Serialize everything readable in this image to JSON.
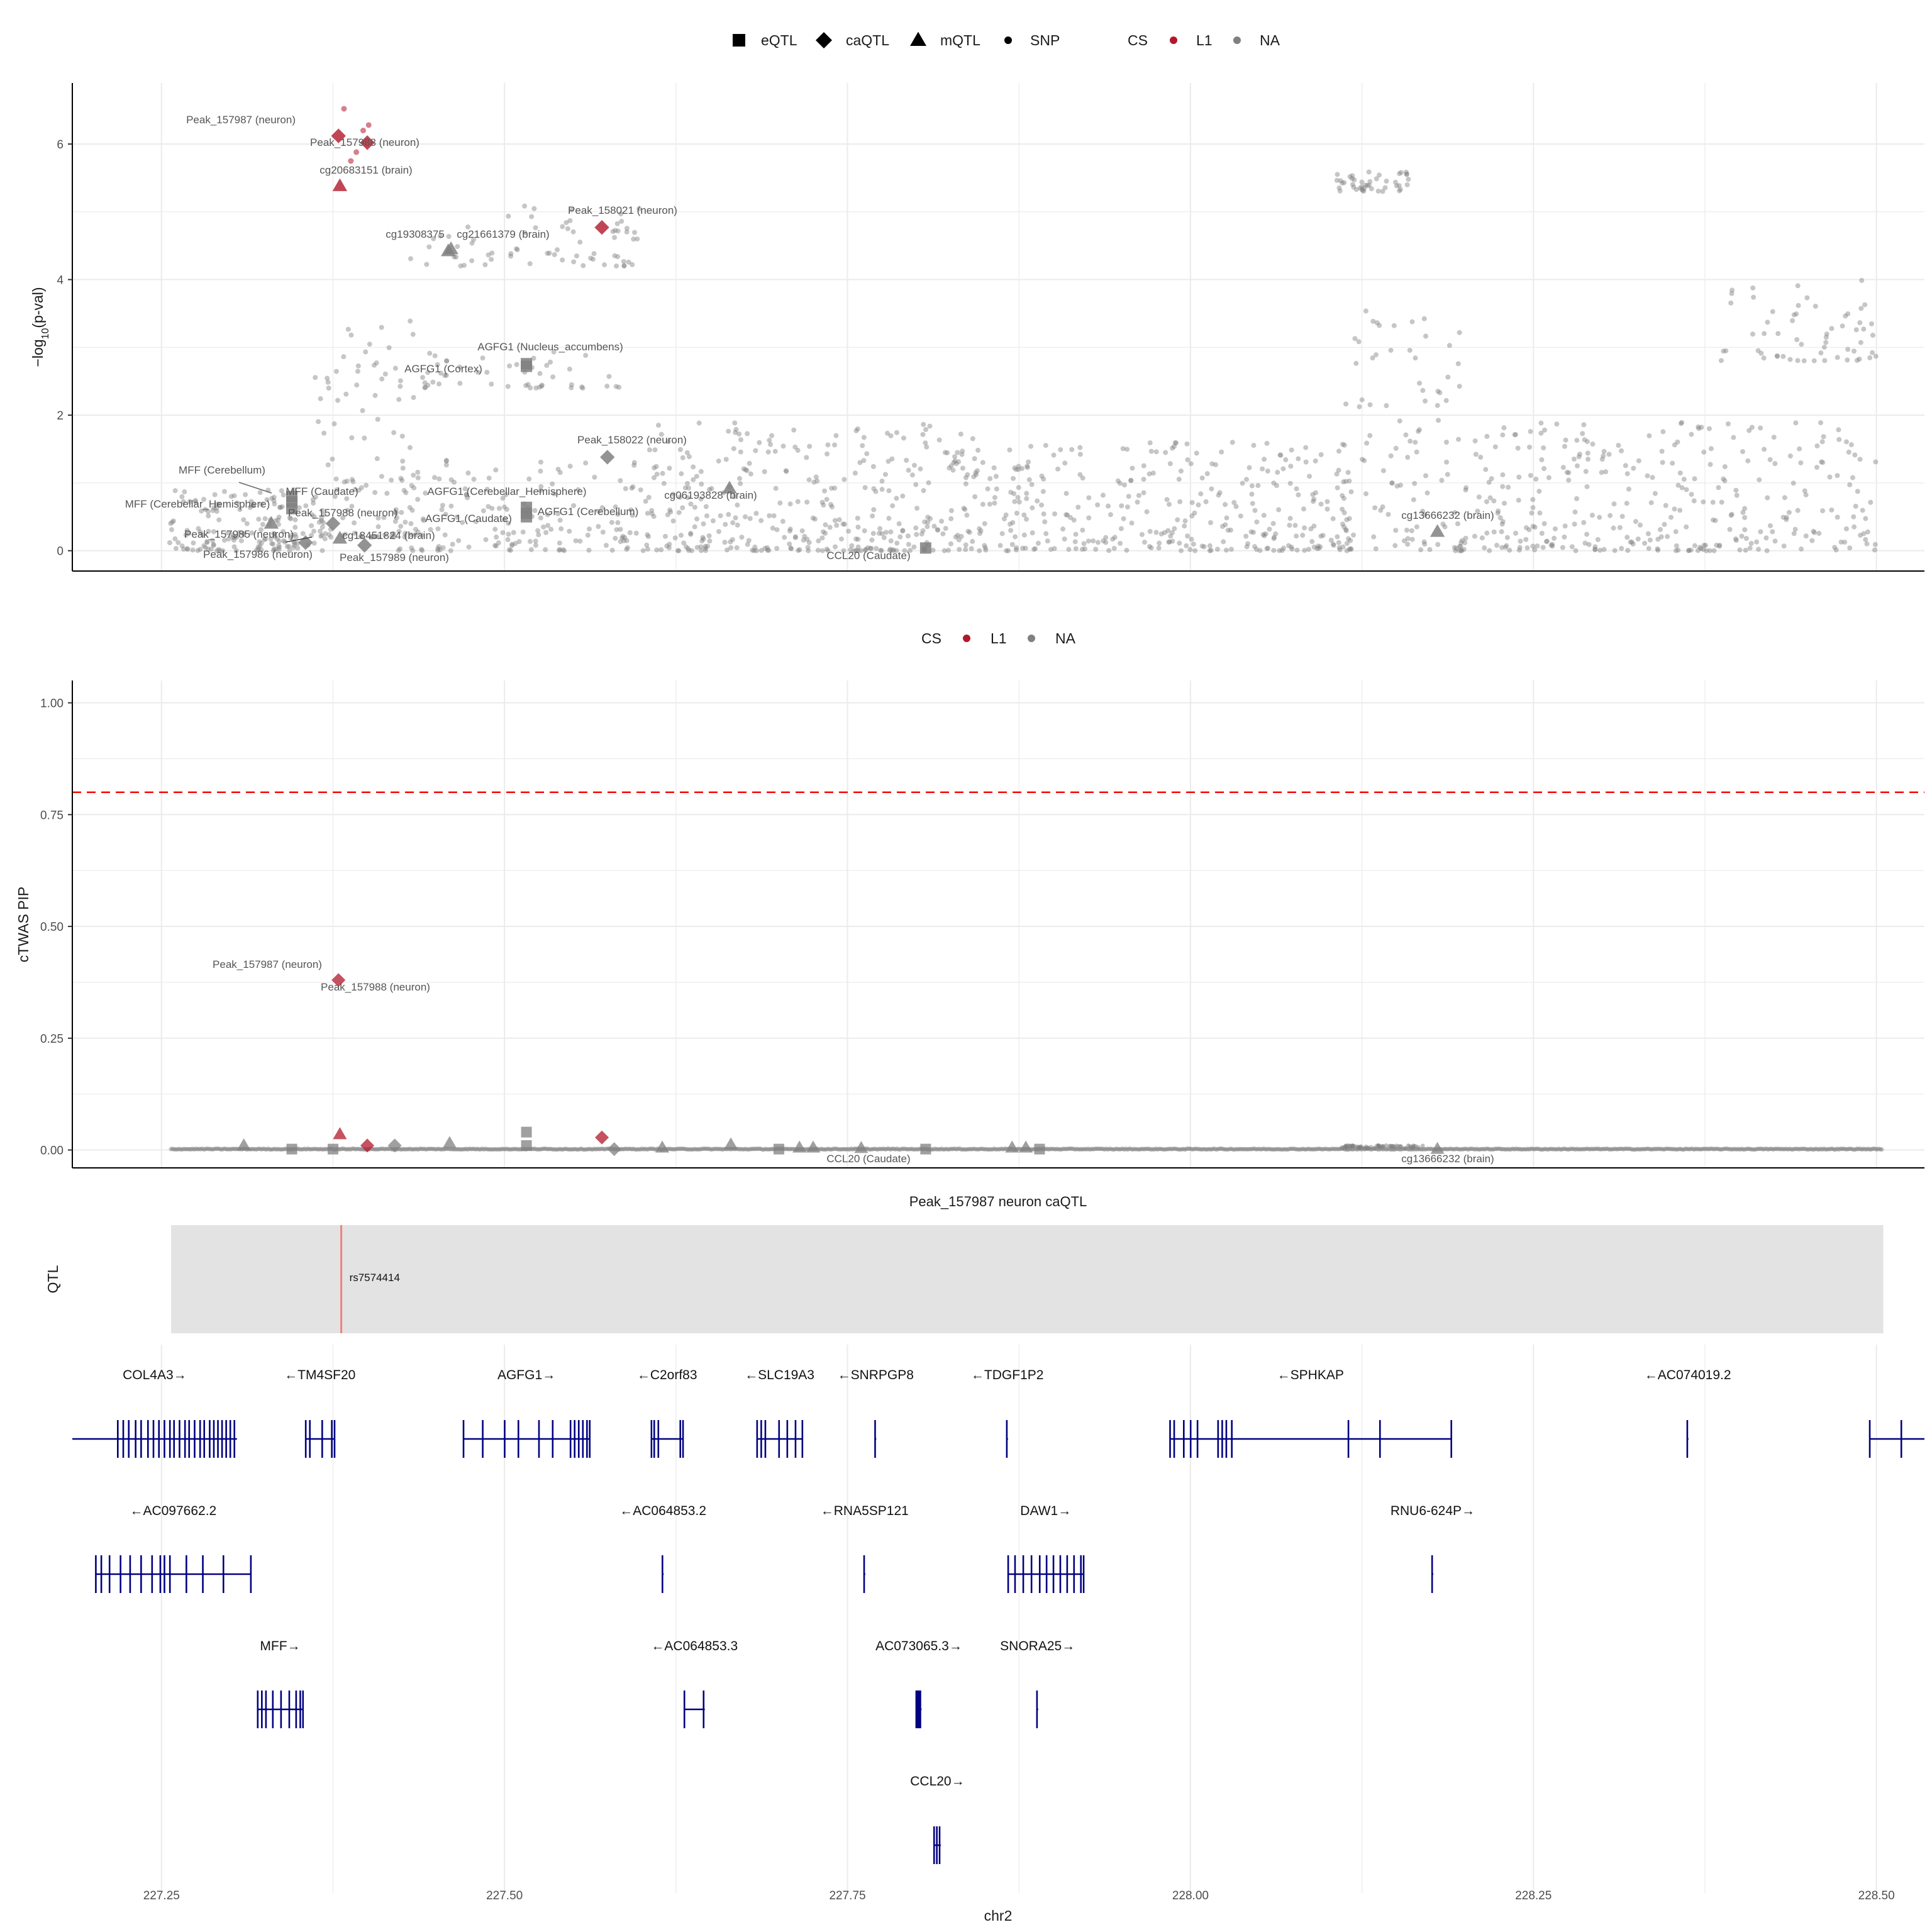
{
  "chart_data": [
    {
      "type": "scatter",
      "panel": "top",
      "ylabel": "−log10(p-val)",
      "ylim": [
        -0.3,
        6.9
      ],
      "xlim": [
        227.185,
        228.535
      ],
      "yticks": [
        0,
        2,
        4,
        6
      ],
      "grid": true,
      "legend": {
        "shape_items": [
          {
            "label": "eQTL",
            "shape": "square"
          },
          {
            "label": "caQTL",
            "shape": "diamond"
          },
          {
            "label": "mQTL",
            "shape": "triangle"
          },
          {
            "label": "SNP",
            "shape": "dot"
          }
        ],
        "color_title": "CS",
        "color_items": [
          {
            "label": "L1",
            "color": "#b2182b"
          },
          {
            "label": "NA",
            "color": "#808080"
          }
        ]
      },
      "clusters": [
        {
          "x0": 227.255,
          "x1": 227.37,
          "ylo": 0.0,
          "yhi": 0.9,
          "n": 170
        },
        {
          "x0": 227.36,
          "x1": 227.44,
          "ylo": 0.2,
          "yhi": 3.4,
          "n": 110
        },
        {
          "x0": 227.43,
          "x1": 227.6,
          "ylo": 4.2,
          "yhi": 5.1,
          "n": 70
        },
        {
          "x0": 227.44,
          "x1": 227.6,
          "ylo": 2.4,
          "yhi": 3.0,
          "n": 50
        },
        {
          "x0": 227.42,
          "x1": 227.6,
          "ylo": 0.0,
          "yhi": 1.4,
          "n": 160
        },
        {
          "x0": 227.6,
          "x1": 227.85,
          "ylo": 0.0,
          "yhi": 1.9,
          "n": 380
        },
        {
          "x0": 227.85,
          "x1": 228.12,
          "ylo": 0.0,
          "yhi": 1.6,
          "n": 330
        },
        {
          "x0": 228.105,
          "x1": 228.16,
          "ylo": 5.3,
          "yhi": 5.6,
          "n": 45
        },
        {
          "x0": 228.11,
          "x1": 228.2,
          "ylo": 0.0,
          "yhi": 3.6,
          "n": 110
        },
        {
          "x0": 228.2,
          "x1": 228.5,
          "ylo": 0.0,
          "yhi": 1.9,
          "n": 330
        },
        {
          "x0": 228.38,
          "x1": 228.5,
          "ylo": 2.8,
          "yhi": 4.0,
          "n": 60
        }
      ],
      "highlighted": [
        {
          "x": 227.383,
          "y": 6.52,
          "shape": "dot",
          "cs": "L1"
        },
        {
          "x": 227.401,
          "y": 6.28,
          "shape": "dot",
          "cs": "L1"
        },
        {
          "x": 227.397,
          "y": 6.2,
          "shape": "dot",
          "cs": "L1"
        },
        {
          "x": 227.388,
          "y": 5.75,
          "shape": "dot",
          "cs": "L1"
        },
        {
          "x": 227.392,
          "y": 5.88,
          "shape": "dot",
          "cs": "L1"
        }
      ],
      "features": [
        {
          "label": "Peak_157987 (neuron)",
          "x": 227.379,
          "y": 6.12,
          "shape": "diamond",
          "cs": "L1"
        },
        {
          "label": "Peak_157988 (neuron)",
          "x": 227.4,
          "y": 6.02,
          "shape": "diamond",
          "cs": "L1"
        },
        {
          "label": "cg20683151 (brain)",
          "x": 227.38,
          "y": 5.38,
          "shape": "triangle",
          "cs": "L1"
        },
        {
          "label": "Peak_158021 (neuron)",
          "x": 227.571,
          "y": 4.77,
          "shape": "diamond",
          "cs": "L1"
        },
        {
          "label": "cg19308375",
          "x": 227.461,
          "y": 4.45,
          "shape": "triangle",
          "cs": "NA"
        },
        {
          "label": "cg21661379 (brain)",
          "x": 227.459,
          "y": 4.42,
          "shape": "triangle",
          "cs": "NA"
        },
        {
          "label": "AGFG1 (Nucleus_accumbens)",
          "x": 227.516,
          "y": 2.76,
          "shape": "square",
          "cs": "NA"
        },
        {
          "label": "AGFG1 (Cortex)",
          "x": 227.516,
          "y": 2.72,
          "shape": "square",
          "cs": "NA"
        },
        {
          "label": "Peak_158022 (neuron)",
          "x": 227.575,
          "y": 1.38,
          "shape": "diamond",
          "cs": "NA"
        },
        {
          "label": "MFF (Cerebellum)",
          "x": 227.345,
          "y": 0.8,
          "shape": "square",
          "cs": "NA"
        },
        {
          "label": "MFF (Caudate)",
          "x": 227.345,
          "y": 0.72,
          "shape": "square",
          "cs": "NA"
        },
        {
          "label": "MFF (Cerebellar_Hemisphere)",
          "x": 227.345,
          "y": 0.62,
          "shape": "square",
          "cs": "NA"
        },
        {
          "label": "AGFG1 (Cerebellar_Hemisphere)",
          "x": 227.516,
          "y": 0.64,
          "shape": "square",
          "cs": "NA"
        },
        {
          "label": "AGFG1 (Caudate)",
          "x": 227.516,
          "y": 0.55,
          "shape": "square",
          "cs": "NA"
        },
        {
          "label": "AGFG1 (Cerebellum)",
          "x": 227.516,
          "y": 0.5,
          "shape": "square",
          "cs": "NA"
        },
        {
          "label": "cg06193828 (brain)",
          "x": 227.664,
          "y": 0.92,
          "shape": "triangle",
          "cs": "NA"
        },
        {
          "label": "Peak_157988 (neuron)",
          "x": 227.375,
          "y": 0.4,
          "shape": "diamond",
          "cs": "NA"
        },
        {
          "label": "Peak_157985 (neuron)",
          "x": 227.33,
          "y": 0.4,
          "shape": "triangle",
          "cs": "NA"
        },
        {
          "label": "cg18451824 (brain)",
          "x": 227.38,
          "y": 0.18,
          "shape": "triangle",
          "cs": "NA"
        },
        {
          "label": "Peak_157986 (neuron)",
          "x": 227.355,
          "y": 0.12,
          "shape": "diamond",
          "cs": "NA"
        },
        {
          "label": "Peak_157989 (neuron)",
          "x": 227.398,
          "y": 0.08,
          "shape": "diamond",
          "cs": "NA"
        },
        {
          "label": "CCL20 (Caudate)",
          "x": 227.807,
          "y": 0.04,
          "shape": "square",
          "cs": "NA"
        },
        {
          "label": "cg13666232 (brain)",
          "x": 228.18,
          "y": 0.28,
          "shape": "triangle",
          "cs": "NA"
        }
      ]
    },
    {
      "type": "scatter",
      "panel": "middle",
      "ylabel": "cTWAS PIP",
      "ylim": [
        -0.04,
        1.05
      ],
      "xlim": [
        227.185,
        228.535
      ],
      "yticks": [
        "0.00",
        "0.25",
        "0.50",
        "0.75",
        "1.00"
      ],
      "threshold": 0.8,
      "threshold_color": "#ff0000",
      "grid": true,
      "legend": {
        "color_title": "CS",
        "color_items": [
          {
            "label": "L1",
            "color": "#b2182b"
          },
          {
            "label": "NA",
            "color": "#808080"
          }
        ]
      },
      "points": [
        {
          "label": "Peak_157987 (neuron)",
          "x": 227.379,
          "y": 0.38,
          "shape": "diamond",
          "cs": "L1"
        },
        {
          "label": "Peak_157988 (neuron)",
          "x": 227.4,
          "y": 0.01,
          "shape": "diamond",
          "cs": "L1"
        },
        {
          "label": "cg20683151 (brain)",
          "x": 227.38,
          "y": 0.035,
          "shape": "triangle",
          "cs": "L1"
        },
        {
          "label": "Peak_158021 (neuron)",
          "x": 227.571,
          "y": 0.028,
          "shape": "diamond",
          "cs": "L1"
        },
        {
          "label": "AGFG1",
          "x": 227.516,
          "y": 0.04,
          "shape": "square",
          "cs": "NA"
        },
        {
          "label": "AGFG1",
          "x": 227.516,
          "y": 0.01,
          "shape": "square",
          "cs": "NA"
        },
        {
          "label": "MFF",
          "x": 227.345,
          "y": 0.002,
          "shape": "square",
          "cs": "NA"
        },
        {
          "label": "MFF",
          "x": 227.375,
          "y": 0.002,
          "shape": "square",
          "cs": "NA"
        },
        {
          "label": "CCL20 (Caudate)",
          "x": 227.807,
          "y": 0.002,
          "shape": "square",
          "cs": "NA"
        },
        {
          "label": "cg13666232 (brain)",
          "x": 228.18,
          "y": 0.002,
          "shape": "triangle",
          "cs": "NA"
        },
        {
          "x": 227.31,
          "y": 0.01,
          "shape": "triangle",
          "cs": "NA"
        },
        {
          "x": 227.42,
          "y": 0.01,
          "shape": "diamond",
          "cs": "NA"
        },
        {
          "x": 227.46,
          "y": 0.015,
          "shape": "triangle",
          "cs": "NA"
        },
        {
          "x": 227.58,
          "y": 0.002,
          "shape": "diamond",
          "cs": "NA"
        },
        {
          "x": 227.615,
          "y": 0.005,
          "shape": "triangle",
          "cs": "NA"
        },
        {
          "x": 227.665,
          "y": 0.012,
          "shape": "triangle",
          "cs": "NA"
        },
        {
          "x": 227.7,
          "y": 0.002,
          "shape": "square",
          "cs": "NA"
        },
        {
          "x": 227.715,
          "y": 0.005,
          "shape": "triangle",
          "cs": "NA"
        },
        {
          "x": 227.725,
          "y": 0.005,
          "shape": "triangle",
          "cs": "NA"
        },
        {
          "x": 227.76,
          "y": 0.004,
          "shape": "triangle",
          "cs": "NA"
        },
        {
          "x": 227.87,
          "y": 0.005,
          "shape": "triangle",
          "cs": "NA"
        },
        {
          "x": 227.88,
          "y": 0.005,
          "shape": "triangle",
          "cs": "NA"
        },
        {
          "x": 227.89,
          "y": 0.002,
          "shape": "square",
          "cs": "NA"
        }
      ],
      "annotations": [
        {
          "label": "Peak_157987 (neuron)"
        },
        {
          "label": "Peak_157988 (neuron)"
        },
        {
          "label": "CCL20 (Caudate)"
        },
        {
          "label": "cg13666232 (brain)"
        }
      ]
    },
    {
      "type": "track",
      "panel": "qtl",
      "title": "Peak_157987 neuron caQTL",
      "ylabel": "QTL",
      "region": [
        227.257,
        228.505
      ],
      "snp": {
        "label": "rs7574414",
        "x": 227.381
      }
    },
    {
      "type": "gene_track",
      "panel": "genes",
      "xlabel": "chr2",
      "xticks": [
        "227.25",
        "227.50",
        "227.75",
        "228.00",
        "228.25",
        "228.50"
      ],
      "genes": [
        {
          "label": "COL4A3→",
          "row": 0,
          "start": 227.185,
          "end": 227.305,
          "exons": [
            227.218,
            227.222,
            227.226,
            227.231,
            227.235,
            227.24,
            227.244,
            227.248,
            227.252,
            227.256,
            227.259,
            227.263,
            227.267,
            227.27,
            227.274,
            227.278,
            227.281,
            227.285,
            227.288,
            227.291,
            227.294,
            227.297,
            227.3,
            227.303
          ]
        },
        {
          "label": "←TM4SF20",
          "row": 0,
          "start": 227.355,
          "end": 227.376,
          "exons": [
            227.355,
            227.358,
            227.367,
            227.374,
            227.376
          ]
        },
        {
          "label": "AGFG1→",
          "row": 0,
          "start": 227.47,
          "end": 227.562,
          "exons": [
            227.47,
            227.484,
            227.5,
            227.51,
            227.525,
            227.535,
            227.548,
            227.551,
            227.554,
            227.557,
            227.56,
            227.562
          ]
        },
        {
          "label": "←C2orf83",
          "row": 0,
          "start": 227.607,
          "end": 227.63,
          "exons": [
            227.607,
            227.609,
            227.612,
            227.628,
            227.63
          ]
        },
        {
          "label": "←SLC19A3",
          "row": 0,
          "start": 227.684,
          "end": 227.717,
          "exons": [
            227.684,
            227.687,
            227.69,
            227.7,
            227.706,
            227.712,
            227.717
          ]
        },
        {
          "label": "←SNRPGP8",
          "row": 0,
          "start": 227.77,
          "end": 227.771,
          "exons": [
            227.77
          ]
        },
        {
          "label": "←TDGF1P2",
          "row": 0,
          "start": 227.866,
          "end": 227.867,
          "exons": [
            227.866
          ]
        },
        {
          "label": "←SPHKAP",
          "row": 0,
          "start": 227.985,
          "end": 228.19,
          "exons": [
            227.985,
            227.988,
            227.995,
            228.0,
            228.005,
            228.02,
            228.023,
            228.026,
            228.03,
            228.115,
            228.138,
            228.19
          ]
        },
        {
          "label": "←AC074019.2",
          "row": 0,
          "start": 228.362,
          "end": 228.363,
          "exons": [
            228.362
          ]
        },
        {
          "label": "",
          "row": 0,
          "start": 228.495,
          "end": 228.535,
          "exons": [
            228.495,
            228.518
          ]
        },
        {
          "label": "←AC097662.2",
          "row": 1,
          "start": 227.202,
          "end": 227.315,
          "exons": [
            227.202,
            227.206,
            227.212,
            227.22,
            227.227,
            227.235,
            227.243,
            227.249,
            227.252,
            227.256,
            227.268,
            227.28,
            227.295,
            227.315
          ]
        },
        {
          "label": "←AC064853.2",
          "row": 1,
          "start": 227.615,
          "end": 227.616,
          "exons": [
            227.615
          ]
        },
        {
          "label": "←RNA5SP121",
          "row": 1,
          "start": 227.762,
          "end": 227.763,
          "exons": [
            227.762
          ]
        },
        {
          "label": "DAW1→",
          "row": 1,
          "start": 227.867,
          "end": 227.922,
          "exons": [
            227.867,
            227.872,
            227.878,
            227.884,
            227.89,
            227.895,
            227.9,
            227.905,
            227.91,
            227.915,
            227.92,
            227.922
          ]
        },
        {
          "label": "RNU6-624P→",
          "row": 1,
          "start": 228.176,
          "end": 228.177,
          "exons": [
            228.176
          ]
        },
        {
          "label": "MFF→",
          "row": 2,
          "start": 227.32,
          "end": 227.353,
          "exons": [
            227.32,
            227.323,
            227.326,
            227.331,
            227.337,
            227.343,
            227.348,
            227.351,
            227.353
          ]
        },
        {
          "label": "←AC064853.3",
          "row": 2,
          "start": 227.631,
          "end": 227.646,
          "exons": [
            227.631,
            227.645
          ]
        },
        {
          "label": "AC073065.3→",
          "row": 2,
          "start": 227.8,
          "end": 227.804,
          "exons": [
            227.8,
            227.801,
            227.802,
            227.803
          ]
        },
        {
          "label": "SNORA25→",
          "row": 2,
          "start": 227.888,
          "end": 227.889,
          "exons": [
            227.888
          ]
        },
        {
          "label": "CCL20→",
          "row": 3,
          "start": 227.813,
          "end": 227.818,
          "exons": [
            227.813,
            227.815,
            227.817
          ]
        }
      ]
    }
  ]
}
